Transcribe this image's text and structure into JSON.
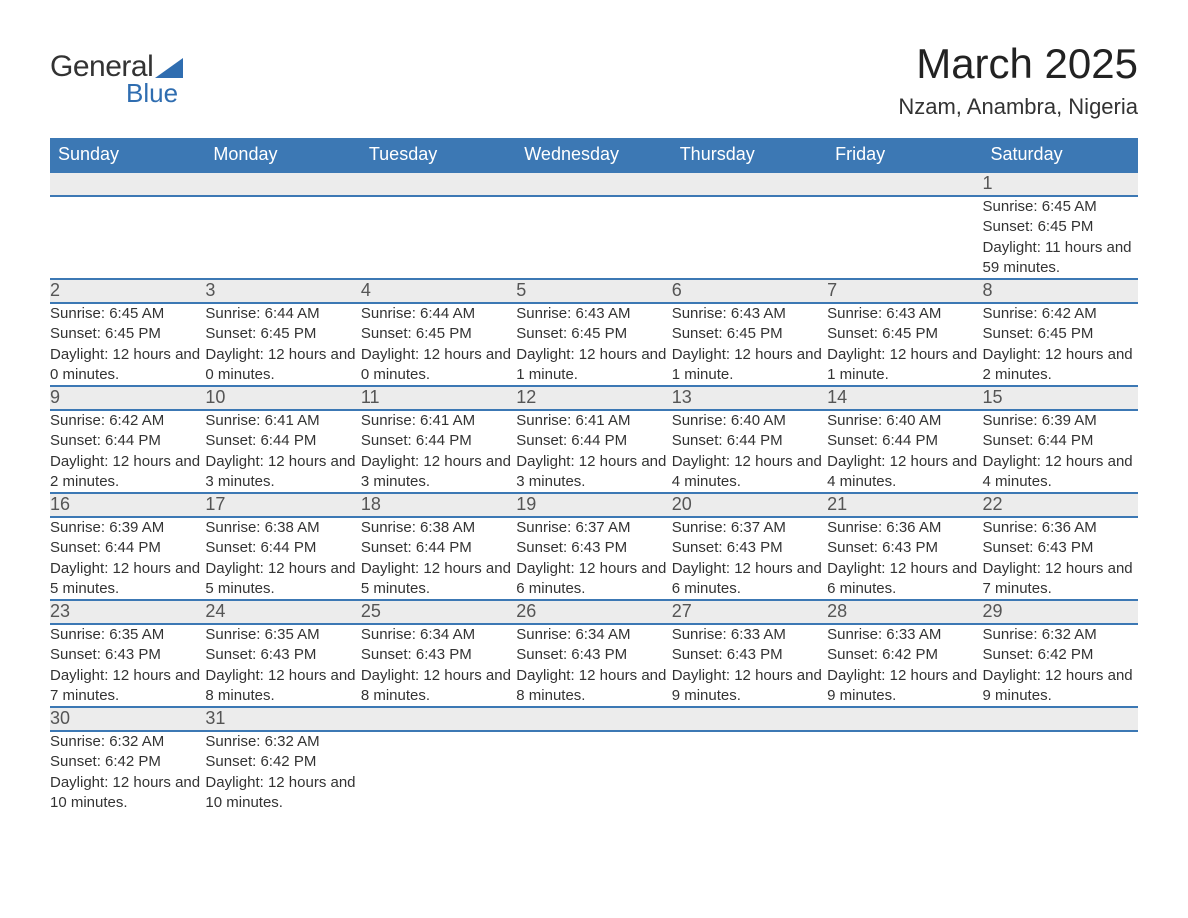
{
  "logo": {
    "word1": "General",
    "word2": "Blue"
  },
  "title": "March 2025",
  "location": "Nzam, Anambra, Nigeria",
  "weekdays": [
    "Sunday",
    "Monday",
    "Tuesday",
    "Wednesday",
    "Thursday",
    "Friday",
    "Saturday"
  ],
  "header_bg": "#3c78b4",
  "header_fg": "#ffffff",
  "daynum_bg": "#ececec",
  "row_border": "#3c78b4",
  "weeks": [
    [
      null,
      null,
      null,
      null,
      null,
      null,
      {
        "n": "1",
        "sr": "Sunrise: 6:45 AM",
        "ss": "Sunset: 6:45 PM",
        "dl": "Daylight: 11 hours and 59 minutes."
      }
    ],
    [
      {
        "n": "2",
        "sr": "Sunrise: 6:45 AM",
        "ss": "Sunset: 6:45 PM",
        "dl": "Daylight: 12 hours and 0 minutes."
      },
      {
        "n": "3",
        "sr": "Sunrise: 6:44 AM",
        "ss": "Sunset: 6:45 PM",
        "dl": "Daylight: 12 hours and 0 minutes."
      },
      {
        "n": "4",
        "sr": "Sunrise: 6:44 AM",
        "ss": "Sunset: 6:45 PM",
        "dl": "Daylight: 12 hours and 0 minutes."
      },
      {
        "n": "5",
        "sr": "Sunrise: 6:43 AM",
        "ss": "Sunset: 6:45 PM",
        "dl": "Daylight: 12 hours and 1 minute."
      },
      {
        "n": "6",
        "sr": "Sunrise: 6:43 AM",
        "ss": "Sunset: 6:45 PM",
        "dl": "Daylight: 12 hours and 1 minute."
      },
      {
        "n": "7",
        "sr": "Sunrise: 6:43 AM",
        "ss": "Sunset: 6:45 PM",
        "dl": "Daylight: 12 hours and 1 minute."
      },
      {
        "n": "8",
        "sr": "Sunrise: 6:42 AM",
        "ss": "Sunset: 6:45 PM",
        "dl": "Daylight: 12 hours and 2 minutes."
      }
    ],
    [
      {
        "n": "9",
        "sr": "Sunrise: 6:42 AM",
        "ss": "Sunset: 6:44 PM",
        "dl": "Daylight: 12 hours and 2 minutes."
      },
      {
        "n": "10",
        "sr": "Sunrise: 6:41 AM",
        "ss": "Sunset: 6:44 PM",
        "dl": "Daylight: 12 hours and 3 minutes."
      },
      {
        "n": "11",
        "sr": "Sunrise: 6:41 AM",
        "ss": "Sunset: 6:44 PM",
        "dl": "Daylight: 12 hours and 3 minutes."
      },
      {
        "n": "12",
        "sr": "Sunrise: 6:41 AM",
        "ss": "Sunset: 6:44 PM",
        "dl": "Daylight: 12 hours and 3 minutes."
      },
      {
        "n": "13",
        "sr": "Sunrise: 6:40 AM",
        "ss": "Sunset: 6:44 PM",
        "dl": "Daylight: 12 hours and 4 minutes."
      },
      {
        "n": "14",
        "sr": "Sunrise: 6:40 AM",
        "ss": "Sunset: 6:44 PM",
        "dl": "Daylight: 12 hours and 4 minutes."
      },
      {
        "n": "15",
        "sr": "Sunrise: 6:39 AM",
        "ss": "Sunset: 6:44 PM",
        "dl": "Daylight: 12 hours and 4 minutes."
      }
    ],
    [
      {
        "n": "16",
        "sr": "Sunrise: 6:39 AM",
        "ss": "Sunset: 6:44 PM",
        "dl": "Daylight: 12 hours and 5 minutes."
      },
      {
        "n": "17",
        "sr": "Sunrise: 6:38 AM",
        "ss": "Sunset: 6:44 PM",
        "dl": "Daylight: 12 hours and 5 minutes."
      },
      {
        "n": "18",
        "sr": "Sunrise: 6:38 AM",
        "ss": "Sunset: 6:44 PM",
        "dl": "Daylight: 12 hours and 5 minutes."
      },
      {
        "n": "19",
        "sr": "Sunrise: 6:37 AM",
        "ss": "Sunset: 6:43 PM",
        "dl": "Daylight: 12 hours and 6 minutes."
      },
      {
        "n": "20",
        "sr": "Sunrise: 6:37 AM",
        "ss": "Sunset: 6:43 PM",
        "dl": "Daylight: 12 hours and 6 minutes."
      },
      {
        "n": "21",
        "sr": "Sunrise: 6:36 AM",
        "ss": "Sunset: 6:43 PM",
        "dl": "Daylight: 12 hours and 6 minutes."
      },
      {
        "n": "22",
        "sr": "Sunrise: 6:36 AM",
        "ss": "Sunset: 6:43 PM",
        "dl": "Daylight: 12 hours and 7 minutes."
      }
    ],
    [
      {
        "n": "23",
        "sr": "Sunrise: 6:35 AM",
        "ss": "Sunset: 6:43 PM",
        "dl": "Daylight: 12 hours and 7 minutes."
      },
      {
        "n": "24",
        "sr": "Sunrise: 6:35 AM",
        "ss": "Sunset: 6:43 PM",
        "dl": "Daylight: 12 hours and 8 minutes."
      },
      {
        "n": "25",
        "sr": "Sunrise: 6:34 AM",
        "ss": "Sunset: 6:43 PM",
        "dl": "Daylight: 12 hours and 8 minutes."
      },
      {
        "n": "26",
        "sr": "Sunrise: 6:34 AM",
        "ss": "Sunset: 6:43 PM",
        "dl": "Daylight: 12 hours and 8 minutes."
      },
      {
        "n": "27",
        "sr": "Sunrise: 6:33 AM",
        "ss": "Sunset: 6:43 PM",
        "dl": "Daylight: 12 hours and 9 minutes."
      },
      {
        "n": "28",
        "sr": "Sunrise: 6:33 AM",
        "ss": "Sunset: 6:42 PM",
        "dl": "Daylight: 12 hours and 9 minutes."
      },
      {
        "n": "29",
        "sr": "Sunrise: 6:32 AM",
        "ss": "Sunset: 6:42 PM",
        "dl": "Daylight: 12 hours and 9 minutes."
      }
    ],
    [
      {
        "n": "30",
        "sr": "Sunrise: 6:32 AM",
        "ss": "Sunset: 6:42 PM",
        "dl": "Daylight: 12 hours and 10 minutes."
      },
      {
        "n": "31",
        "sr": "Sunrise: 6:32 AM",
        "ss": "Sunset: 6:42 PM",
        "dl": "Daylight: 12 hours and 10 minutes."
      },
      null,
      null,
      null,
      null,
      null
    ]
  ]
}
